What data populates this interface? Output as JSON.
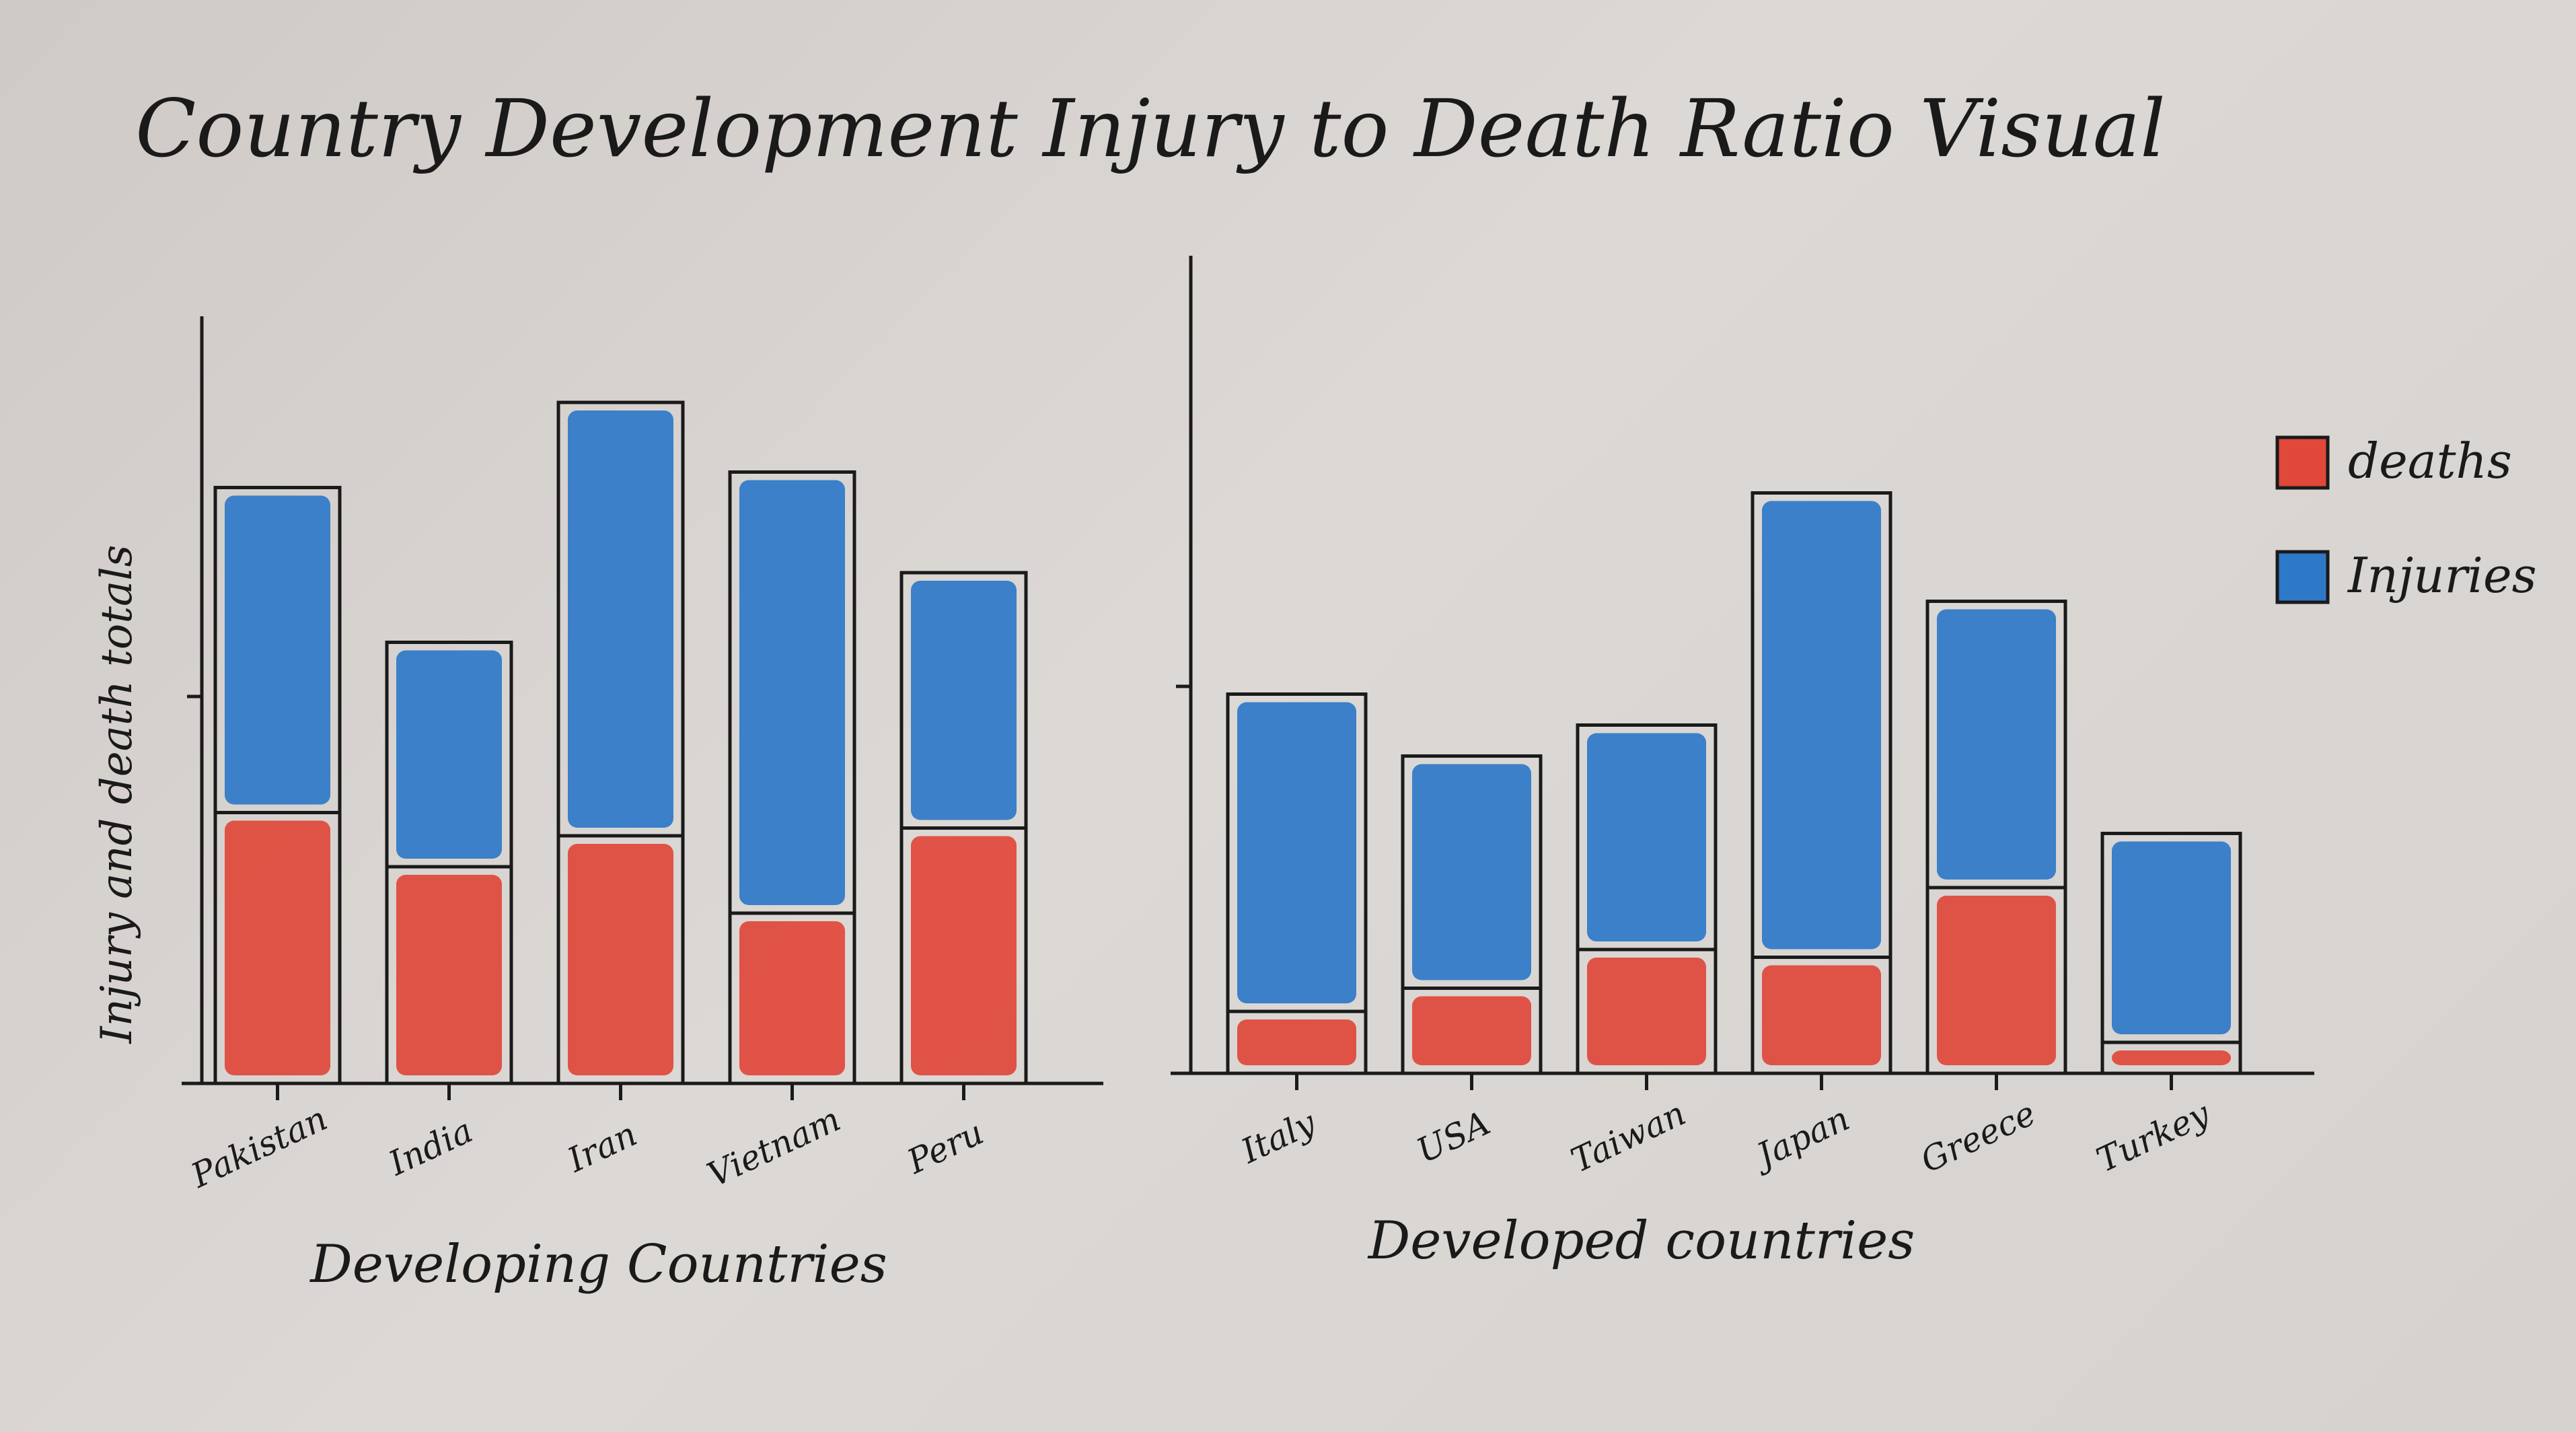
{
  "title": "Country Development Injury to Death Ratio Visual",
  "legend": {
    "placement": "right",
    "entries": [
      {
        "label": "deaths",
        "color": "#e0483a"
      },
      {
        "label": "Injuries",
        "color": "#2e78c8"
      }
    ]
  },
  "chart_data": [
    {
      "type": "bar",
      "stacked": true,
      "categories": [
        "Pakistan",
        "India",
        "Iran",
        "Vietnam",
        "Peru"
      ],
      "series": [
        {
          "name": "deaths",
          "values": [
            3.5,
            2.8,
            3.2,
            2.2,
            3.3
          ],
          "color": "#e0483a"
        },
        {
          "name": "Injuries",
          "values": [
            4.2,
            2.9,
            5.6,
            5.7,
            3.3
          ],
          "color": "#2e78c8"
        }
      ],
      "xlabel": "Developing Countries",
      "ylabel": "Injury and death totals",
      "ylim": [
        0,
        10
      ],
      "yticks": [
        5
      ],
      "grid": false
    },
    {
      "type": "bar",
      "stacked": true,
      "categories": [
        "Italy",
        "USA",
        "Taiwan",
        "Japan",
        "Greece",
        "Turkey"
      ],
      "series": [
        {
          "name": "deaths",
          "values": [
            0.8,
            1.1,
            1.6,
            1.5,
            2.4,
            0.4
          ],
          "color": "#e0483a"
        },
        {
          "name": "Injuries",
          "values": [
            4.1,
            3.0,
            2.9,
            6.0,
            3.7,
            2.7
          ],
          "color": "#2e78c8"
        }
      ],
      "xlabel": "Developed countries",
      "ylabel": "",
      "ylim": [
        0,
        10
      ],
      "yticks": [
        5
      ],
      "grid": false
    }
  ]
}
